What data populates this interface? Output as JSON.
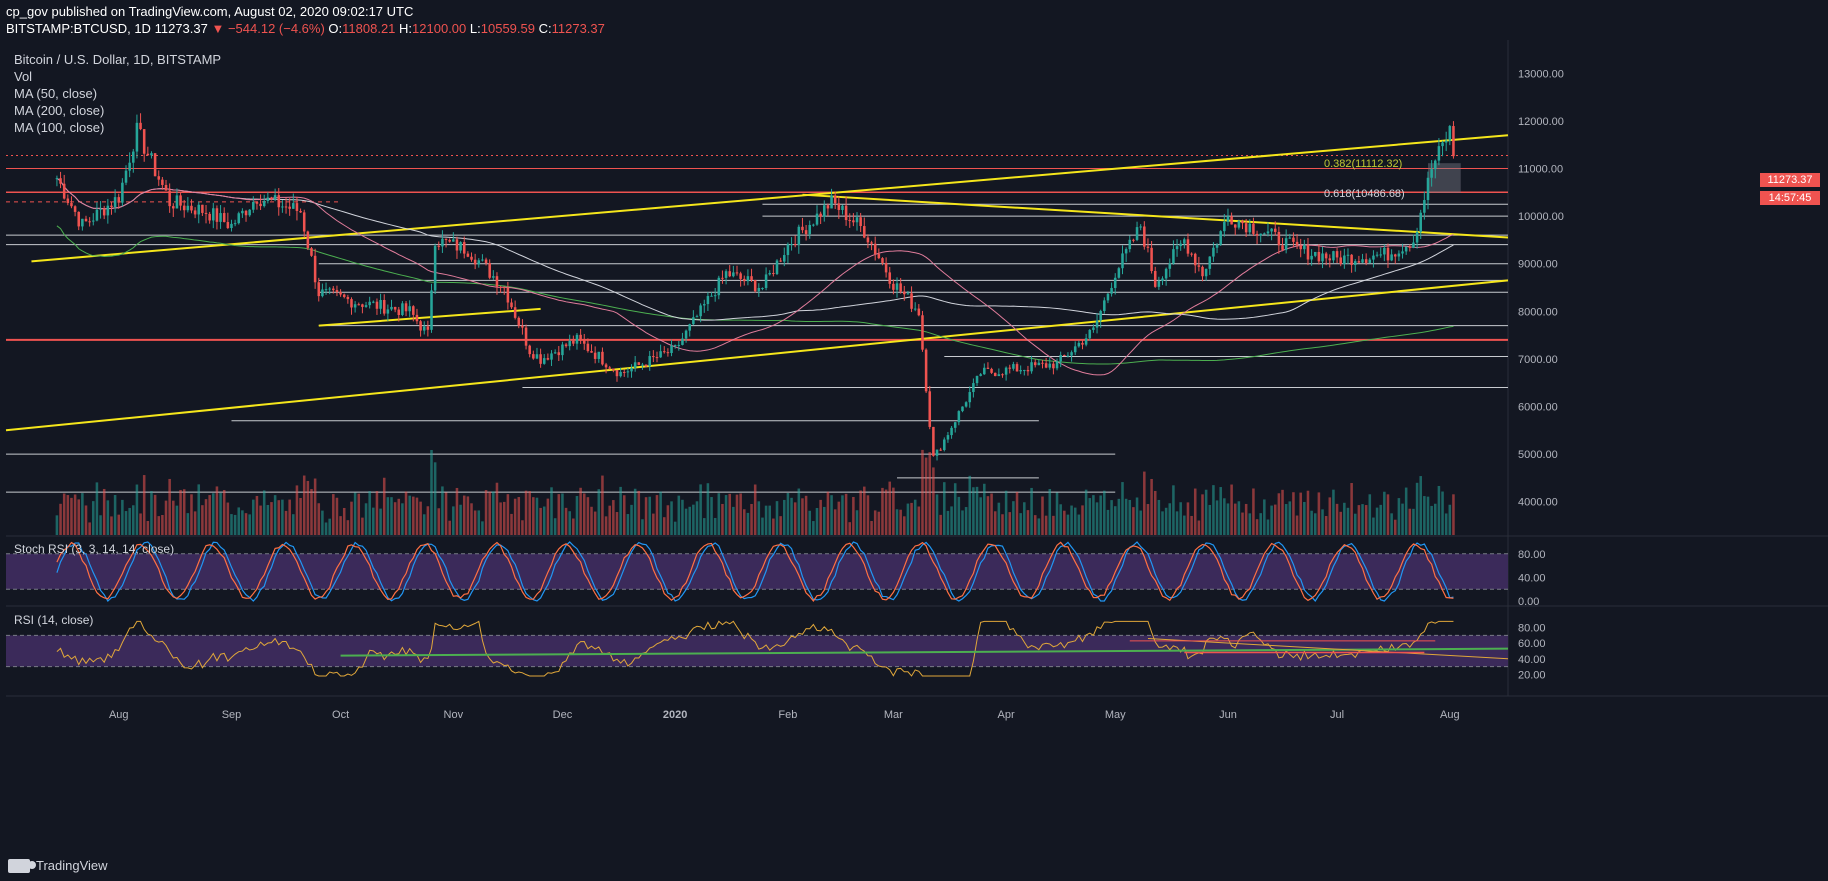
{
  "header": {
    "line1": "cp_gov published on TradingView.com, August 02, 2020 09:02:17 UTC",
    "symbol": "BITSTAMP:BTCUSD, 1D",
    "last": "11273.37",
    "change": "▼ −544.12 (−4.6%)",
    "o_label": "O:",
    "o": "11808.21",
    "h_label": "H:",
    "h": "12100.00",
    "l_label": "L:",
    "l": "10559.59",
    "c_label": "C:",
    "c": "11273.37"
  },
  "legend": {
    "title": "Bitcoin / U.S. Dollar, 1D, BITSTAMP",
    "vol": "Vol",
    "ma50": "MA (50, close)",
    "ma200": "MA (200, close)",
    "ma100": "MA (100, close)"
  },
  "price_tags": {
    "last": "11273.37",
    "countdown": "14:57:45"
  },
  "fib": {
    "a_label": "0.382(11112.32)",
    "b_label": "0.618(10486.68)"
  },
  "brand": "TradingView",
  "colors": {
    "bg": "#131722",
    "up": "#26a69a",
    "down": "#ef5350",
    "trend": "#f5e61b",
    "hline": "#c8cbd0",
    "red_line": "#ef5350",
    "ma50": "#e07c9b",
    "ma100": "#d1d4dc",
    "ma200": "#4caf50",
    "stoch_k": "#2196f3",
    "stoch_d": "#ff7043",
    "rsi": "#e0a73a",
    "band": "#3b2a5a"
  },
  "chart_data": [
    {
      "type": "candlestick",
      "title": "Bitcoin / U.S. Dollar, 1D, BITSTAMP",
      "x_ticks": [
        "Aug",
        "Sep",
        "Oct",
        "Nov",
        "Dec",
        "2020",
        "Feb",
        "Mar",
        "Apr",
        "May",
        "Jun",
        "Jul",
        "Aug"
      ],
      "y_ticks": [
        4000,
        5000,
        6000,
        7000,
        8000,
        9000,
        10000,
        11000,
        12000,
        13000
      ],
      "y_tick_labels": [
        "4000.00",
        "5000.00",
        "6000.00",
        "7000.00",
        "8000.00",
        "9000.00",
        "10000.00",
        "11000.00",
        "12000.00",
        "13000.00"
      ],
      "ylim": [
        3300,
        13700
      ],
      "closes_approx": [
        {
          "date": "2019-07-15",
          "close": 10800
        },
        {
          "date": "2019-07-22",
          "close": 9800
        },
        {
          "date": "2019-08-01",
          "close": 10400
        },
        {
          "date": "2019-08-06",
          "close": 11800
        },
        {
          "date": "2019-08-15",
          "close": 10300
        },
        {
          "date": "2019-08-25",
          "close": 10100
        },
        {
          "date": "2019-09-01",
          "close": 9800
        },
        {
          "date": "2019-09-08",
          "close": 10400
        },
        {
          "date": "2019-09-20",
          "close": 10100
        },
        {
          "date": "2019-09-25",
          "close": 8400
        },
        {
          "date": "2019-10-05",
          "close": 8200
        },
        {
          "date": "2019-10-20",
          "close": 8000
        },
        {
          "date": "2019-10-25",
          "close": 7500
        },
        {
          "date": "2019-10-27",
          "close": 9500
        },
        {
          "date": "2019-11-05",
          "close": 9300
        },
        {
          "date": "2019-11-15",
          "close": 8500
        },
        {
          "date": "2019-11-22",
          "close": 7200
        },
        {
          "date": "2019-11-25",
          "close": 7000
        },
        {
          "date": "2019-12-05",
          "close": 7400
        },
        {
          "date": "2019-12-17",
          "close": 6700
        },
        {
          "date": "2020-01-01",
          "close": 7200
        },
        {
          "date": "2020-01-08",
          "close": 8000
        },
        {
          "date": "2020-01-15",
          "close": 8800
        },
        {
          "date": "2020-01-25",
          "close": 8500
        },
        {
          "date": "2020-02-01",
          "close": 9400
        },
        {
          "date": "2020-02-13",
          "close": 10300
        },
        {
          "date": "2020-02-22",
          "close": 9700
        },
        {
          "date": "2020-03-01",
          "close": 8600
        },
        {
          "date": "2020-03-08",
          "close": 8000
        },
        {
          "date": "2020-03-12",
          "close": 4900
        },
        {
          "date": "2020-03-15",
          "close": 5300
        },
        {
          "date": "2020-03-25",
          "close": 6700
        },
        {
          "date": "2020-04-05",
          "close": 6800
        },
        {
          "date": "2020-04-15",
          "close": 6900
        },
        {
          "date": "2020-04-25",
          "close": 7600
        },
        {
          "date": "2020-05-01",
          "close": 8800
        },
        {
          "date": "2020-05-08",
          "close": 9800
        },
        {
          "date": "2020-05-12",
          "close": 8600
        },
        {
          "date": "2020-05-20",
          "close": 9500
        },
        {
          "date": "2020-05-25",
          "close": 8800
        },
        {
          "date": "2020-06-01",
          "close": 10000
        },
        {
          "date": "2020-06-10",
          "close": 9700
        },
        {
          "date": "2020-06-20",
          "close": 9300
        },
        {
          "date": "2020-07-01",
          "close": 9100
        },
        {
          "date": "2020-07-15",
          "close": 9200
        },
        {
          "date": "2020-07-22",
          "close": 9500
        },
        {
          "date": "2020-07-27",
          "close": 11000
        },
        {
          "date": "2020-08-01",
          "close": 11800
        },
        {
          "date": "2020-08-02",
          "close": 11273
        }
      ]
    },
    {
      "type": "line",
      "title": "Stoch RSI (3, 3, 14, 14, close)",
      "y_ticks": [
        0,
        40,
        80
      ],
      "y_tick_labels": [
        "0.00",
        "40.00",
        "80.00"
      ],
      "band": [
        20,
        80
      ],
      "last": 85
    },
    {
      "type": "line",
      "title": "RSI (14, close)",
      "y_ticks": [
        20,
        40,
        60,
        80
      ],
      "y_tick_labels": [
        "20.00",
        "40.00",
        "60.00",
        "80.00"
      ],
      "band": [
        30,
        70
      ],
      "last": 68
    }
  ]
}
